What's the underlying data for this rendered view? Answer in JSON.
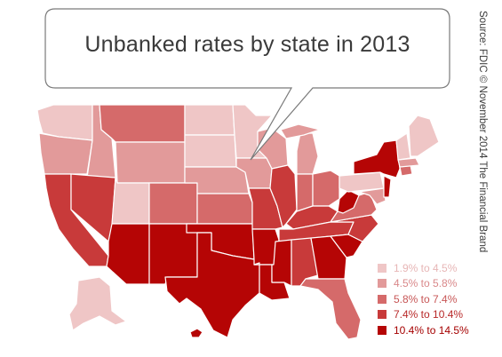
{
  "title": "Unbanked rates by state in 2013",
  "source": "Source: FDIC © November 2014 The Financial Brand",
  "legend": [
    {
      "label": "1.9% to 4.5%",
      "color": "#efc6c6",
      "text_color": "#e7b6b6"
    },
    {
      "label": "4.5% to 5.8%",
      "color": "#e29a9a",
      "text_color": "#d9888a"
    },
    {
      "label": "5.8% to 7.4%",
      "color": "#d56a6a",
      "text_color": "#c75656"
    },
    {
      "label": "7.4% to 10.4%",
      "color": "#c83a3a",
      "text_color": "#b82828"
    },
    {
      "label": "10.4% to 14.5%",
      "color": "#b50505",
      "text_color": "#a50000"
    }
  ]
}
